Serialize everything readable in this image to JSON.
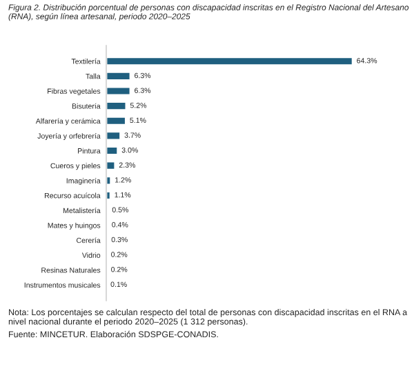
{
  "chart_data": {
    "type": "bar",
    "orientation": "horizontal",
    "title": "Figura 2. Distribución porcentual de personas con discapacidad inscritas en el Registro Nacional del Artesano (RNA), según línea artesanal, periodo 2020–2025",
    "categories": [
      "Textilería",
      "Talla",
      "Fibras vegetales",
      "Bisutería",
      "Alfarería y cerámica",
      "Joyería y orfebrería",
      "Pintura",
      "Cueros y pieles",
      "Imaginería",
      "Recurso acuícola",
      "Metalistería",
      "Mates y huingos",
      "Cerería",
      "Vidrio",
      "Resinas Naturales",
      "Instrumentos musicales"
    ],
    "values": [
      64.3,
      6.3,
      6.3,
      5.2,
      5.1,
      3.7,
      3.0,
      2.3,
      1.2,
      1.1,
      0.5,
      0.4,
      0.3,
      0.2,
      0.2,
      0.1
    ],
    "value_labels": [
      "64.3%",
      "6.3%",
      "6.3%",
      "5.2%",
      "5.1%",
      "3.7%",
      "3.0%",
      "2.3%",
      "1.2%",
      "1.1%",
      "0.5%",
      "0.4%",
      "0.3%",
      "0.2%",
      "0.2%",
      "0.1%"
    ],
    "color": "#1f5f7f",
    "annotations": [
      "Nota: Los porcentajes se calculan respecto del total de personas con discapacidad inscritas en el RNA a nivel nacional durante el periodo 2020–2025 (1 312 personas).",
      "Fuente: MINCETUR. Elaboración SDSPGE-CONADIS."
    ],
    "grid": false,
    "legend": false
  }
}
